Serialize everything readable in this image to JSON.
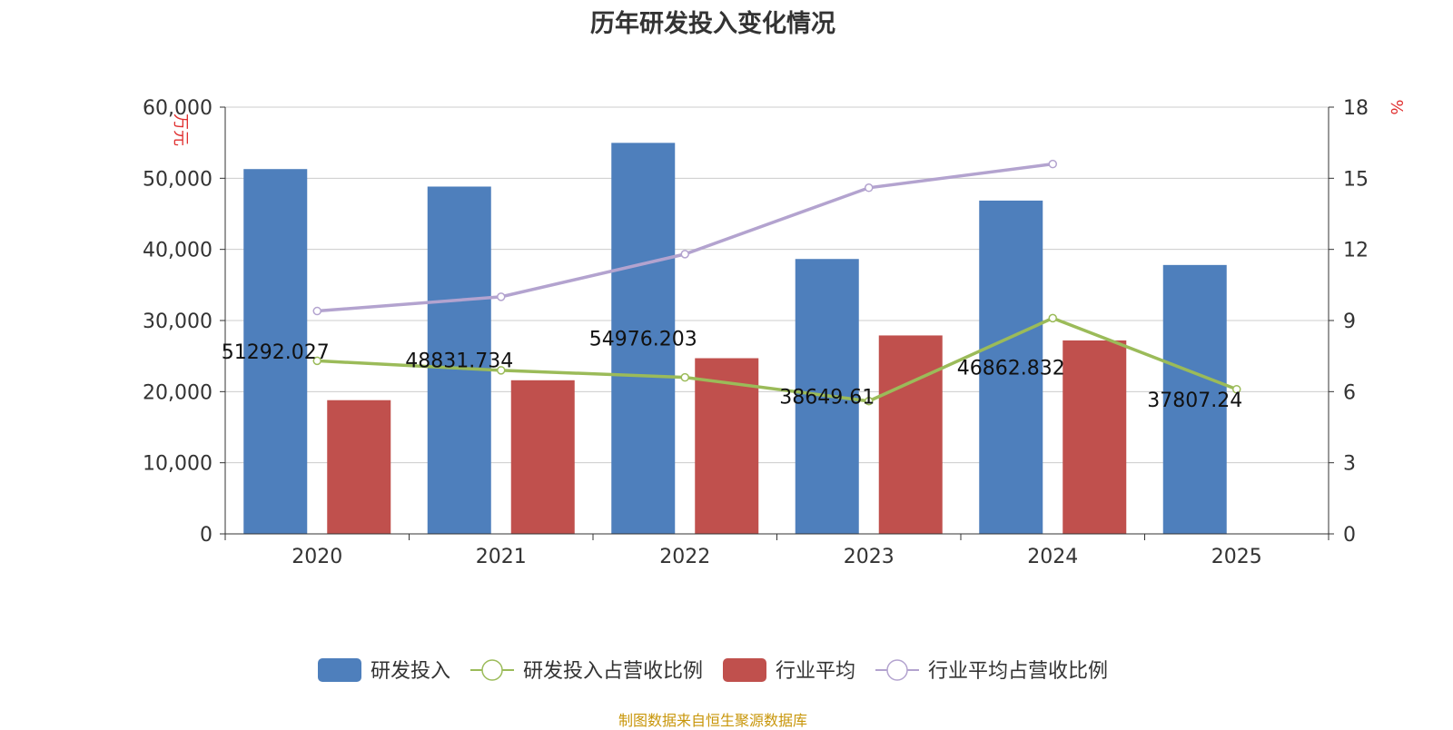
{
  "chart_data": {
    "type": "bar",
    "title": "历年研发投入变化情况",
    "categories": [
      "2020",
      "2021",
      "2022",
      "2023",
      "2024",
      "2025"
    ],
    "y_left": {
      "label": "万元",
      "min": 0,
      "max": 60000,
      "ticks": [
        "0",
        "10,000",
        "20,000",
        "30,000",
        "40,000",
        "50,000",
        "60,000"
      ],
      "tick_values": [
        0,
        10000,
        20000,
        30000,
        40000,
        50000,
        60000
      ]
    },
    "y_right": {
      "label": "%",
      "min": 0,
      "max": 18,
      "ticks": [
        "0",
        "3",
        "6",
        "9",
        "12",
        "15",
        "18"
      ],
      "tick_values": [
        0,
        3,
        6,
        9,
        12,
        15,
        18
      ]
    },
    "grid": true,
    "legend_position": "bottom",
    "series": [
      {
        "name": "研发投入",
        "type": "bar",
        "axis": "left",
        "color": "#4e7fbc",
        "values": [
          51292.027,
          48831.734,
          54976.203,
          38649.61,
          46862.832,
          37807.24
        ],
        "labels": [
          "51292.027",
          "48831.734",
          "54976.203",
          "38649.61",
          "46862.832",
          "37807.24"
        ]
      },
      {
        "name": "研发投入占营收比例",
        "type": "line",
        "axis": "right",
        "color": "#9bbb59",
        "values": [
          7.3,
          6.9,
          6.6,
          5.6,
          9.1,
          6.1
        ]
      },
      {
        "name": "行业平均",
        "type": "bar",
        "axis": "left",
        "color": "#c0504d",
        "values": [
          18800,
          21600,
          24700,
          27900,
          27200,
          null
        ]
      },
      {
        "name": "行业平均占营收比例",
        "type": "line",
        "axis": "right",
        "color": "#b3a3cf",
        "values": [
          9.4,
          10.0,
          11.8,
          14.6,
          15.6,
          null
        ]
      }
    ]
  },
  "source_note": "制图数据来自恒生聚源数据库"
}
